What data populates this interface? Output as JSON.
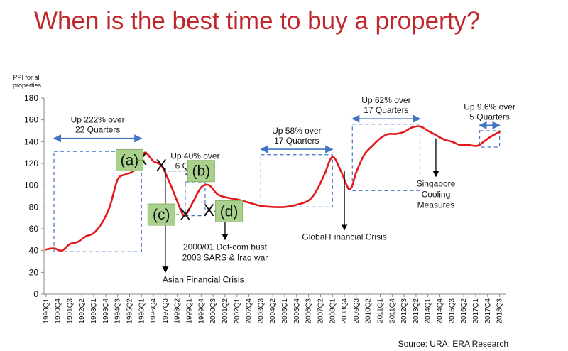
{
  "title": "When is the best time to buy a property?",
  "source": "Source: URA, ERA Research",
  "colors": {
    "title": "#c0272d",
    "series": "#e3191b",
    "dashed_box": "#4472c4",
    "label_box": "#a9d18e",
    "x_mark": "#4a8a2a"
  },
  "chart_data": {
    "type": "line",
    "ylabel_lines": [
      "PPI for all",
      "properties"
    ],
    "xlabel": "",
    "ylim": [
      0,
      180
    ],
    "yticks": [
      0,
      20,
      40,
      60,
      80,
      100,
      120,
      140,
      160,
      180
    ],
    "grid": false,
    "x_tick_labels": [
      "1990Q1",
      "1990Q4",
      "1991Q3",
      "1992Q2",
      "1993Q1",
      "1993Q4",
      "1994Q3",
      "1995Q2",
      "1996Q1",
      "1996Q4",
      "1997Q3",
      "1998Q2",
      "1999Q1",
      "1999Q4",
      "2000Q3",
      "2001Q2",
      "2002Q1",
      "2002Q4",
      "2003Q3",
      "2004Q2",
      "2005Q1",
      "2005Q4",
      "2006Q3",
      "2007Q2",
      "2008Q1",
      "2008Q4",
      "2009Q3",
      "2010Q2",
      "2011Q1",
      "2011Q4",
      "2012Q3",
      "2013Q2",
      "2014Q1",
      "2014Q4",
      "2015Q3",
      "2016Q2",
      "2017Q1",
      "2017Q4",
      "2018Q3"
    ],
    "series": [
      {
        "x": [
          "1990Q1",
          "1990Q3",
          "1991Q1",
          "1991Q3",
          "1992Q1",
          "1992Q3",
          "1993Q1",
          "1993Q3",
          "1994Q1",
          "1994Q3",
          "1995Q1",
          "1995Q3",
          "1996Q1",
          "1996Q2",
          "1996Q4",
          "1997Q2",
          "1997Q4",
          "1998Q2",
          "1998Q3",
          "1998Q4",
          "1999Q2",
          "1999Q4",
          "2000Q2",
          "2000Q4",
          "2001Q2",
          "2002Q1",
          "2002Q4",
          "2003Q3",
          "2004Q2",
          "2005Q1",
          "2005Q4",
          "2006Q3",
          "2007Q1",
          "2007Q3",
          "2008Q1",
          "2008Q3",
          "2009Q1",
          "2009Q2",
          "2009Q3",
          "2010Q1",
          "2010Q3",
          "2011Q1",
          "2011Q3",
          "2012Q1",
          "2012Q3",
          "2013Q1",
          "2013Q3",
          "2014Q1",
          "2014Q3",
          "2015Q1",
          "2015Q3",
          "2016Q1",
          "2016Q3",
          "2017Q1",
          "2017Q2",
          "2017Q3",
          "2018Q1",
          "2018Q3"
        ],
        "values": [
          41,
          42,
          40,
          46,
          48,
          53,
          56,
          65,
          80,
          105,
          110,
          113,
          124,
          130,
          122,
          118,
          103,
          85,
          76,
          72,
          85,
          98,
          100,
          92,
          89,
          87,
          84,
          81,
          80,
          80,
          82,
          86,
          95,
          110,
          126,
          114,
          97,
          100,
          112,
          128,
          136,
          143,
          147,
          147,
          149,
          153,
          154,
          150,
          146,
          142,
          140,
          137,
          137,
          136,
          137,
          140,
          145,
          149
        ]
      }
    ],
    "dashed_boxes": [
      {
        "name": "asian-crisis-run-up",
        "x_from": "1990Q3",
        "x_to": "1996Q1",
        "y_from": 39,
        "y_to": 131
      },
      {
        "name": "post-asian-rebound",
        "x_from": "1998Q4",
        "x_to": "2000Q1",
        "y_from": 72,
        "y_to": 103
      },
      {
        "name": "dot-com-to-gfc-run-up",
        "x_from": "2003Q3",
        "x_to": "2008Q1",
        "y_from": 80,
        "y_to": 128
      },
      {
        "name": "post-gfc-run-up",
        "x_from": "2009Q2",
        "x_to": "2013Q3",
        "y_from": 95,
        "y_to": 156
      },
      {
        "name": "recent-run-up",
        "x_from": "2017Q2",
        "x_to": "2018Q3",
        "y_from": 135,
        "y_to": 150
      }
    ],
    "range_annotations": [
      {
        "lines": [
          "Up 222% over",
          "22 Quarters"
        ],
        "x_from": "1990Q3",
        "x_to": "1996Q1",
        "arrow_y": 143
      },
      {
        "lines": [
          "Up 40% over",
          "6 Quarters"
        ],
        "x_from": "1998Q4",
        "x_to": "2000Q1",
        "arrow_y": 110
      },
      {
        "lines": [
          "Up 58% over",
          "17 Quarters"
        ],
        "x_from": "2003Q3",
        "x_to": "2008Q1",
        "arrow_y": 133
      },
      {
        "lines": [
          "Up 62% over",
          "17 Quarters"
        ],
        "x_from": "2009Q2",
        "x_to": "2013Q3",
        "arrow_y": 161
      },
      {
        "lines": [
          "Up 9.6% over",
          "5 Quarters"
        ],
        "x_from": "2017Q2",
        "x_to": "2018Q3",
        "arrow_y": 155
      }
    ],
    "event_annotations": [
      {
        "lines": [
          "Asian Financial Crisis"
        ],
        "x": "1997Q3",
        "y_from": 116,
        "y_to": 20
      },
      {
        "lines": [
          "2000/01 Dot-com bust",
          "2003 SARS & Iraq war"
        ],
        "x": "2001Q2",
        "y_from": 78,
        "y_to": 50
      },
      {
        "lines": [
          "Global Financial Crisis"
        ],
        "x": "2008Q4",
        "y_from": 113,
        "y_to": 59
      },
      {
        "lines": [
          "Singapore",
          "Cooling",
          "Measures"
        ],
        "x": "2014Q3",
        "y_from": 143,
        "y_to": 108
      }
    ],
    "phase_labels": [
      {
        "label": "(a)",
        "x": "1995Q2",
        "y": 123
      },
      {
        "label": "(b)",
        "x": "1999Q4",
        "y": 113
      },
      {
        "label": "(c)",
        "x": "1997Q2",
        "y": 73
      },
      {
        "label": "(d)",
        "x": "2001Q3",
        "y": 76
      }
    ],
    "x_marks": [
      {
        "x": "1996Q1",
        "y": 124
      },
      {
        "x": "1997Q2",
        "y": 118
      },
      {
        "x": "1998Q4",
        "y": 73
      },
      {
        "x": "2000Q2",
        "y": 77
      }
    ]
  }
}
